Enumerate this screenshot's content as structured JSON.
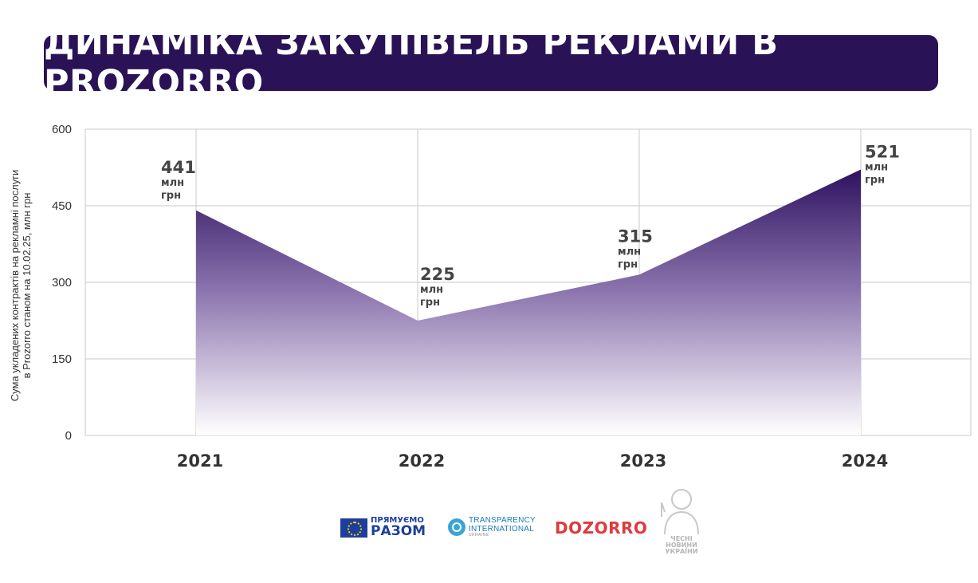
{
  "title": "ДИНАМІКА ЗАКУПІВЕЛЬ РЕКЛАМИ В PROZORRO",
  "colors": {
    "title_bg": "#2a1257",
    "area_top": "#2e1260",
    "area_bottom": "#ffffff",
    "grid": "#c9c9c9"
  },
  "chart_data": {
    "type": "area",
    "title": "ДИНАМІКА ЗАКУПІВЕЛЬ РЕКЛАМИ В PROZORRO",
    "ylabel_lines": [
      "Сума укладених контрактів на рекламні послуги",
      "в Prozorro станом на 10.02.25, млн грн"
    ],
    "categories": [
      "2021",
      "2022",
      "2023",
      "2024"
    ],
    "values": [
      441,
      225,
      315,
      521
    ],
    "value_labels": [
      "441",
      "225",
      "315",
      "521"
    ],
    "value_unit_lines": [
      "млн",
      "грн"
    ],
    "yticks": [
      "0",
      "150",
      "300",
      "450",
      "600"
    ],
    "ylim": [
      0,
      600
    ],
    "grid": true
  },
  "logos": {
    "eu": {
      "icon": "eu-flag-icon",
      "line1": "ПРЯМУЄМО",
      "line2": "РАЗОМ"
    },
    "ti": {
      "icon": "transparency-globe-icon",
      "line1": "TRANSPARENCY",
      "line2": "INTERNATIONAL",
      "line3": "UKRAINE"
    },
    "dozorro": {
      "text": "DOZORRO"
    },
    "chesni": {
      "icon": "person-silhouette-icon",
      "line1": "ЧЕСНІ",
      "line2": "НОВИНИ",
      "line3": "УКРАЇНИ"
    }
  }
}
